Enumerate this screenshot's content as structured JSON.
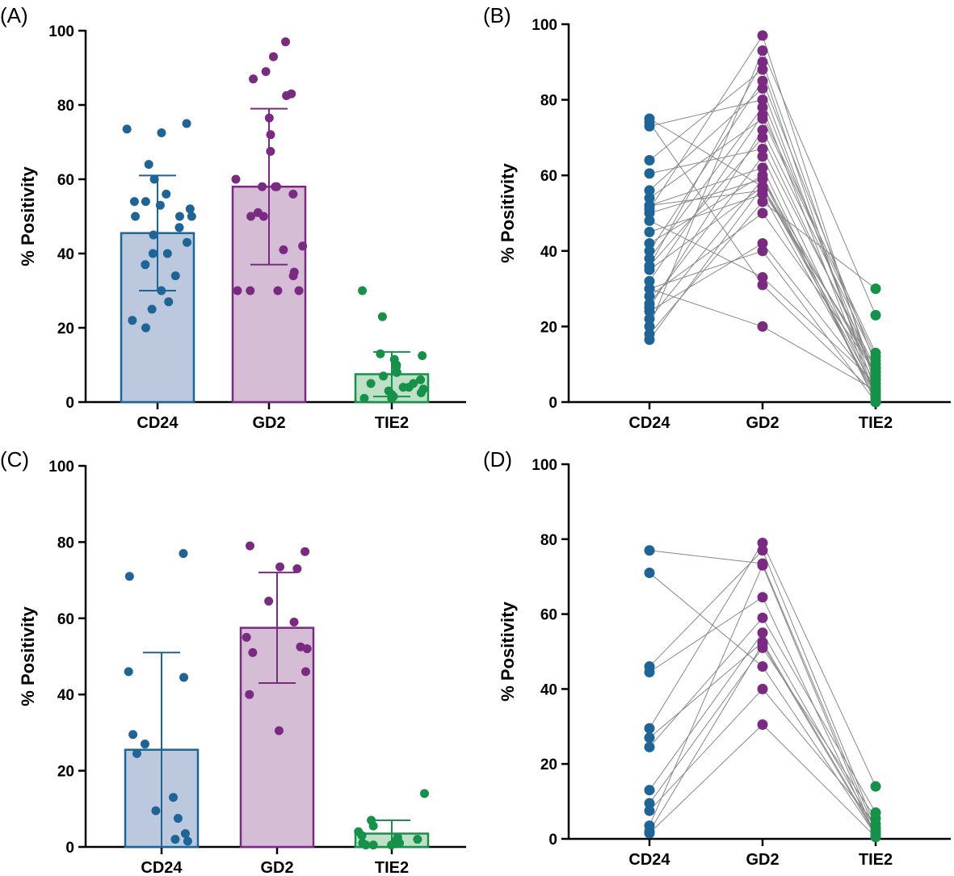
{
  "colors": {
    "CD24": "#1e6496",
    "GD2": "#7b2a82",
    "TIE2": "#17904a",
    "link": "#888888"
  },
  "chart_data": [
    {
      "panel": "(A)",
      "type": "bar",
      "ylabel": "% Positivity",
      "ylim": [
        0,
        100
      ],
      "yticks": [
        "0",
        "20",
        "40",
        "60",
        "80",
        "100"
      ],
      "categories": [
        "CD24",
        "GD2",
        "TIE2"
      ],
      "means": [
        45.5,
        58,
        7.5
      ],
      "sd": [
        15.5,
        21,
        6
      ],
      "points": [
        [
          75,
          73.5,
          72.5,
          64,
          60,
          56,
          54,
          54,
          53,
          52,
          50,
          50,
          50,
          47,
          45,
          43,
          40,
          40,
          37,
          34,
          30,
          27,
          25,
          22,
          20
        ],
        [
          97,
          93,
          89,
          87,
          83,
          82.5,
          76.5,
          72,
          67.5,
          60,
          58,
          58,
          58,
          56,
          51,
          50,
          50,
          42,
          41,
          35,
          34,
          30,
          30,
          30,
          30
        ],
        [
          30,
          23,
          13,
          12.5,
          11.5,
          10,
          9.5,
          8,
          8,
          7,
          6,
          5,
          5,
          4,
          4,
          3.5,
          3,
          2.5,
          2,
          1.5,
          1,
          1
        ]
      ]
    },
    {
      "panel": "(B)",
      "type": "scatter",
      "ylabel": "% Positivity",
      "ylim": [
        0,
        100
      ],
      "yticks": [
        "0",
        "20",
        "40",
        "60",
        "80",
        "100"
      ],
      "categories": [
        "CD24",
        "GD2",
        "TIE2"
      ],
      "pairs": [
        [
          75,
          57,
          8
        ],
        [
          74,
          31,
          2
        ],
        [
          73,
          80,
          6
        ],
        [
          64,
          88,
          1
        ],
        [
          60.5,
          67,
          9
        ],
        [
          56,
          83,
          3
        ],
        [
          54,
          75,
          12
        ],
        [
          52,
          62,
          0
        ],
        [
          51,
          97,
          4
        ],
        [
          50,
          59,
          7
        ],
        [
          48,
          33,
          5
        ],
        [
          45,
          55,
          2
        ],
        [
          40,
          85,
          10
        ],
        [
          38,
          78,
          1
        ],
        [
          36,
          90,
          6
        ],
        [
          35,
          57,
          3
        ],
        [
          32,
          76,
          13
        ],
        [
          30,
          40,
          0
        ],
        [
          28,
          50,
          8
        ],
        [
          26,
          65,
          2
        ],
        [
          25,
          72,
          11
        ],
        [
          24,
          42,
          4
        ],
        [
          22,
          59,
          1
        ],
        [
          20,
          93,
          23
        ],
        [
          18,
          53,
          30
        ],
        [
          16.5,
          57,
          5
        ],
        [
          30,
          20,
          3
        ],
        [
          36,
          70,
          7
        ],
        [
          52,
          56,
          9
        ],
        [
          42,
          60,
          0
        ]
      ]
    },
    {
      "panel": "(C)",
      "type": "bar",
      "ylabel": "% Positivity",
      "ylim": [
        0,
        100
      ],
      "yticks": [
        "0",
        "20",
        "40",
        "60",
        "80",
        "100"
      ],
      "categories": [
        "CD24",
        "GD2",
        "TIE2"
      ],
      "means": [
        25.5,
        57.5,
        3.5
      ],
      "sd": [
        25.5,
        14.5,
        3.5
      ],
      "points": [
        [
          77,
          71,
          46,
          44.5,
          29.5,
          27,
          24.5,
          13,
          9.5,
          7.5,
          3.5,
          2,
          1.5
        ],
        [
          79,
          77.5,
          73.5,
          73,
          64.5,
          59,
          55,
          52.5,
          52,
          51,
          46,
          40,
          30.5
        ],
        [
          14,
          7,
          5.5,
          4,
          3,
          2.5,
          2,
          1.5,
          1,
          1,
          0.5,
          0.5,
          0.5
        ]
      ]
    },
    {
      "panel": "(D)",
      "type": "scatter",
      "ylabel": "% Positivity",
      "ylim": [
        0,
        100
      ],
      "yticks": [
        "0",
        "20",
        "40",
        "60",
        "80",
        "100"
      ],
      "categories": [
        "CD24",
        "GD2",
        "TIE2"
      ],
      "pairs": [
        [
          77,
          73.5,
          2
        ],
        [
          71,
          46,
          1
        ],
        [
          46,
          77,
          3
        ],
        [
          44.5,
          64.5,
          0.5
        ],
        [
          29.5,
          79,
          14
        ],
        [
          27,
          52.5,
          1.5
        ],
        [
          24.5,
          59,
          7
        ],
        [
          13,
          55,
          2.5
        ],
        [
          9.5,
          51,
          5.5
        ],
        [
          7.5,
          40,
          4
        ],
        [
          3.5,
          73,
          0.5
        ],
        [
          2,
          52,
          1
        ],
        [
          1.5,
          30.5,
          0.5
        ]
      ]
    }
  ]
}
